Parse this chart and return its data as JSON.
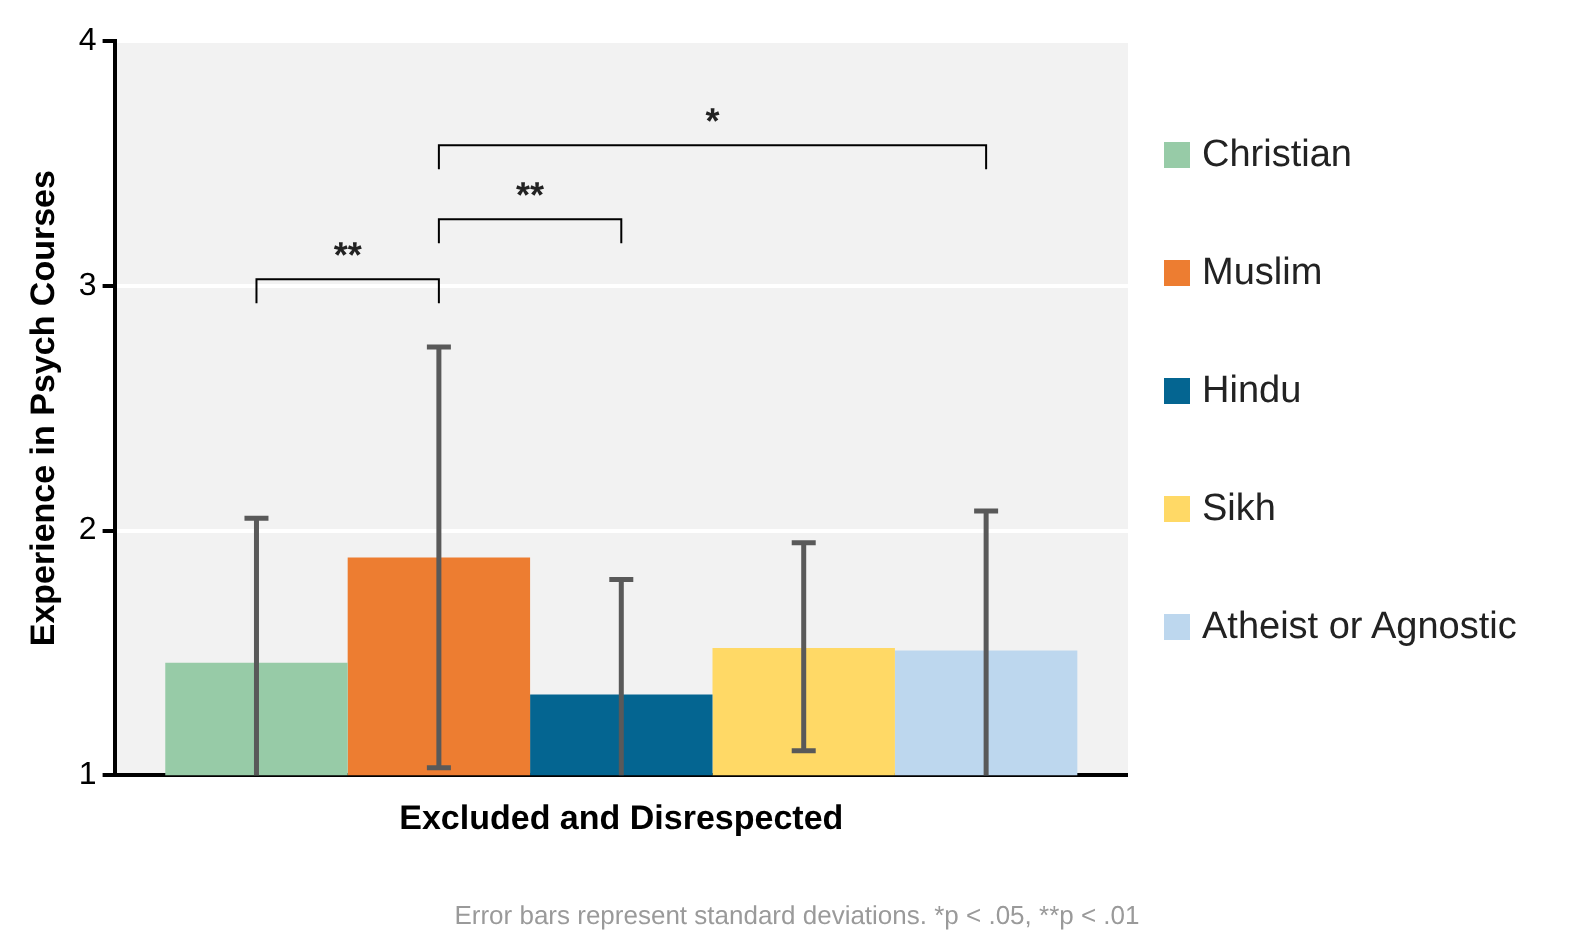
{
  "chart_data": {
    "type": "bar",
    "categories": [
      "Excluded and Disrespected"
    ],
    "ylabel": "Experience in Psych Courses",
    "series": [
      {
        "name": "Christian",
        "color": "#97cba7",
        "values": [
          1.46
        ],
        "errors": [
          [
            1,
            2.05
          ]
        ]
      },
      {
        "name": "Muslim",
        "color": "#ed7d31",
        "values": [
          1.89
        ],
        "errors": [
          [
            1.03,
            2.75
          ]
        ]
      },
      {
        "name": "Hindu",
        "color": "#046591",
        "values": [
          1.33
        ],
        "errors": [
          [
            1,
            1.8
          ]
        ]
      },
      {
        "name": "Sikh",
        "color": "#ffd966",
        "values": [
          1.52
        ],
        "errors": [
          [
            1.1,
            1.95
          ]
        ]
      },
      {
        "name": "Atheist or Agnostic",
        "color": "#bdd7ee",
        "values": [
          1.51
        ],
        "errors": [
          [
            1,
            2.08
          ]
        ]
      }
    ],
    "ylim": [
      1,
      4
    ],
    "yticks": [
      1,
      2,
      3,
      4
    ],
    "grid": "y",
    "legend": "right",
    "annotations": [
      "**",
      "**",
      "*",
      "Error bars represent standard deviations. *p < .05, **p < .01"
    ]
  }
}
